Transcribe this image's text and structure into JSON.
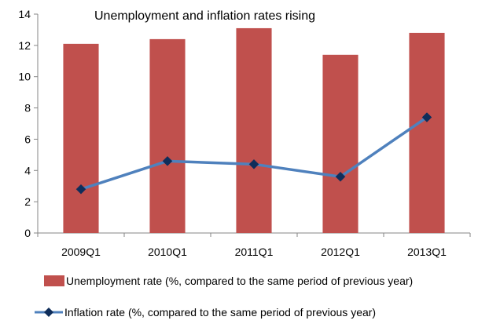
{
  "chart_data": {
    "type": "bar",
    "title": "Unemployment and inflation rates rising",
    "xlabel": "",
    "ylabel": "",
    "categories": [
      "2009Q1",
      "2010Q1",
      "2011Q1",
      "2012Q1",
      "2013Q1"
    ],
    "ylim": [
      0,
      14
    ],
    "yticks": [
      0,
      2,
      4,
      6,
      8,
      10,
      12,
      14
    ],
    "grid": false,
    "legend_position": "bottom",
    "series": [
      {
        "name": "Unemployment rate (%,  compared to the same period of previous year)",
        "type": "bar",
        "color": "#C0504D",
        "values": [
          12.1,
          12.4,
          13.1,
          11.4,
          12.8
        ]
      },
      {
        "name": "Inflation rate (%,  compared to the same period of previous year)",
        "type": "line",
        "color": "#4F81BD",
        "marker_color": "#0F2D5A",
        "marker": "diamond",
        "values": [
          2.8,
          4.6,
          4.4,
          3.6,
          7.4
        ]
      }
    ]
  }
}
